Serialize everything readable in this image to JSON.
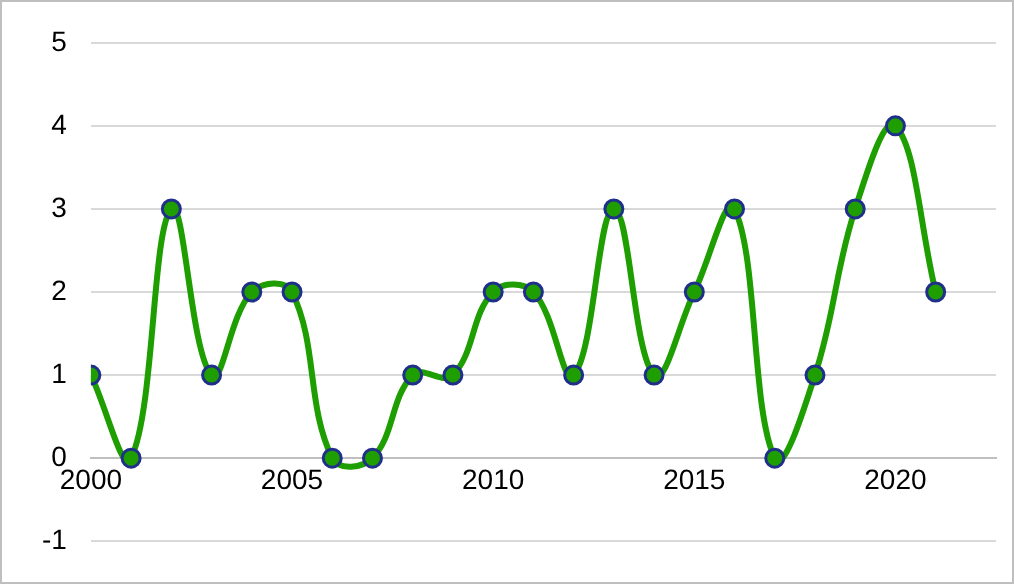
{
  "chart_data": {
    "type": "line",
    "x": [
      2000,
      2001,
      2002,
      2003,
      2004,
      2005,
      2006,
      2007,
      2008,
      2009,
      2010,
      2011,
      2012,
      2013,
      2014,
      2015,
      2016,
      2017,
      2018,
      2019,
      2020,
      2021
    ],
    "series": [
      {
        "color": "#1e9e00",
        "values": [
          1,
          0,
          3,
          1,
          2,
          2,
          0,
          0,
          1,
          1,
          2,
          2,
          1,
          3,
          1,
          2,
          3,
          0,
          1,
          3,
          4,
          2
        ]
      }
    ],
    "xlim": [
      2000,
      2022.5
    ],
    "xticks": [
      2000,
      2005,
      2010,
      2015,
      2020
    ],
    "ylim": [
      -1,
      5
    ],
    "yticks": [
      -1,
      0,
      1,
      2,
      3,
      4,
      5
    ],
    "grid": "y",
    "legend": false,
    "marker": "circle",
    "line_style": "solid"
  }
}
